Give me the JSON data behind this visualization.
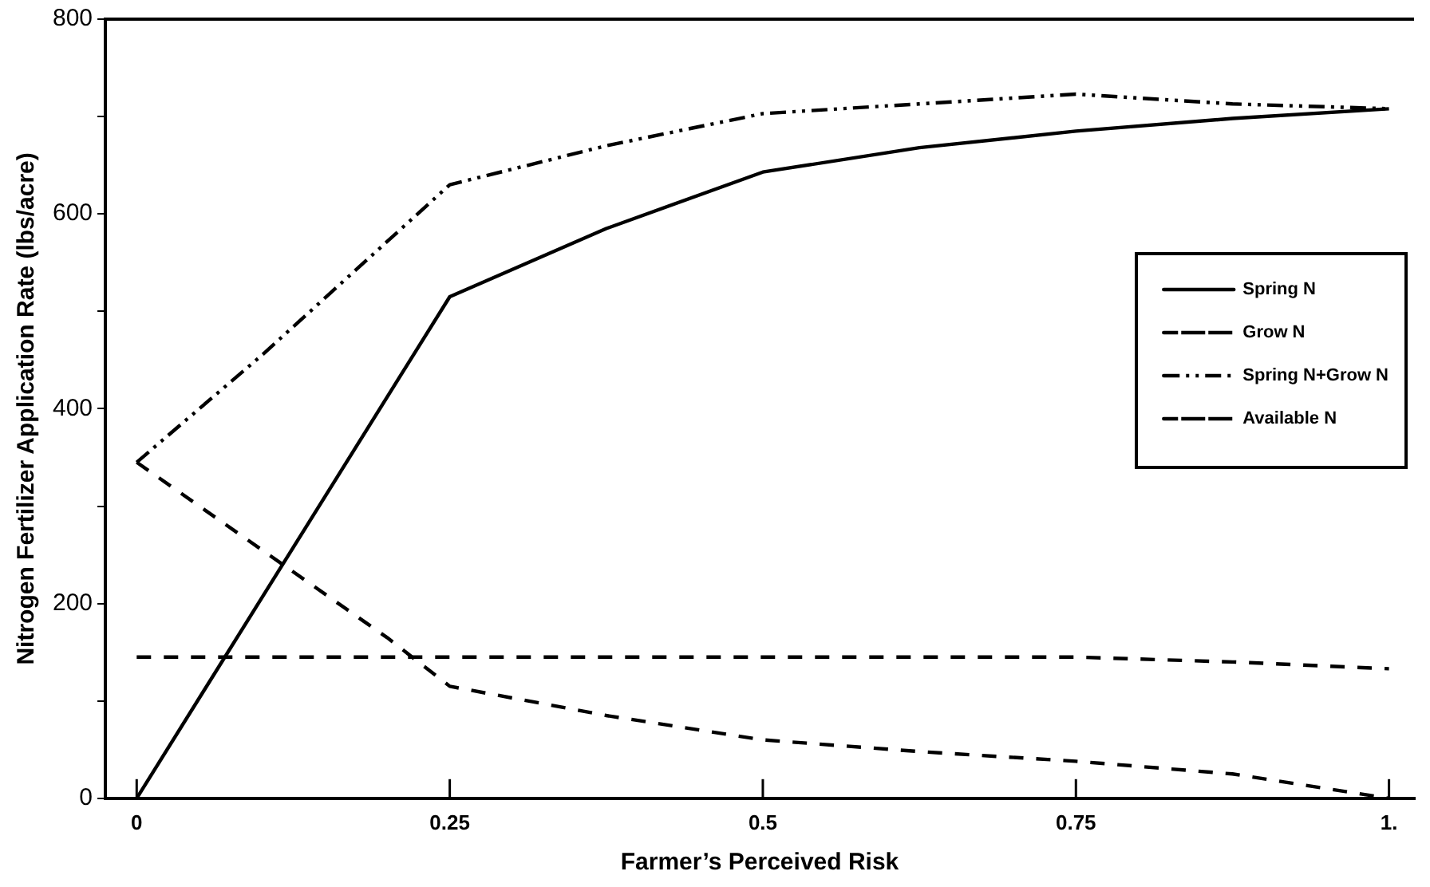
{
  "chart_data": {
    "type": "line",
    "xlabel": "Farmer’s Perceived Risk",
    "ylabel": "Nitrogen Fertilizer Application Rate (lbs/acre)",
    "xlim": [
      -0.025,
      1.02
    ],
    "xticks": [
      0,
      0.25,
      0.5,
      0.75,
      {
        "value": 1,
        "label": "1."
      }
    ],
    "ylim": [
      0,
      800
    ],
    "yticks": [
      0,
      {
        "value": 100,
        "label": null
      },
      200,
      {
        "value": 300,
        "label": null
      },
      400,
      {
        "value": 500,
        "label": null
      },
      600,
      {
        "value": 700,
        "label": null
      },
      800
    ],
    "legend": "right",
    "grid": false,
    "marker": "none",
    "series": [
      {
        "name": "Spring N",
        "color": "#000000",
        "line_style": "solid",
        "x": [
          0,
          0.25,
          0.375,
          0.5,
          0.625,
          0.75,
          0.875,
          1
        ],
        "values": [
          0,
          515,
          585,
          643,
          668,
          685,
          698,
          708
        ]
      },
      {
        "name": "Grow N",
        "color": "#000000",
        "line_style": "dashed",
        "x": [
          0,
          0.1,
          0.2,
          0.25,
          0.375,
          0.5,
          0.625,
          0.75,
          0.875,
          1
        ],
        "values": [
          345,
          255,
          165,
          115,
          85,
          60,
          48,
          38,
          25,
          0
        ]
      },
      {
        "name": "Spring N+Grow N",
        "color": "#000000",
        "line_style": "dotted",
        "x": [
          0,
          0.1,
          0.25,
          0.375,
          0.5,
          0.625,
          0.75,
          0.875,
          1
        ],
        "values": [
          345,
          455,
          630,
          670,
          703,
          713,
          723,
          713,
          708
        ]
      },
      {
        "name": "Available N",
        "color": "#000000",
        "line_style": "dashed",
        "x": [
          0,
          0.25,
          0.5,
          0.75,
          0.875,
          1
        ],
        "values": [
          145,
          145,
          145,
          145,
          140,
          133
        ]
      }
    ]
  }
}
